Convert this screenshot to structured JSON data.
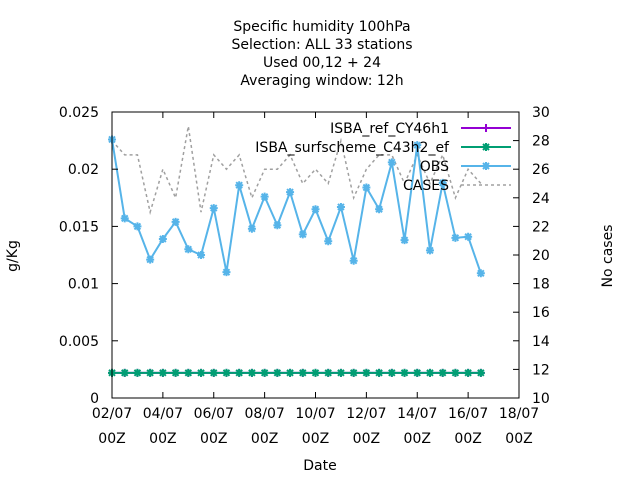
{
  "chart_data": {
    "type": "line",
    "title_lines": [
      "Specific humidity 100hPa",
      "Selection: ALL      33 stations",
      "Used  00,12  + 24",
      "Averaging window: 12h"
    ],
    "xlabel": "Date",
    "ylabel": "g/Kg",
    "y2label": "No cases",
    "x_ticks": [
      {
        "day": 2,
        "line1": "02/07",
        "line2": "00Z"
      },
      {
        "day": 4,
        "line1": "04/07",
        "line2": "00Z"
      },
      {
        "day": 6,
        "line1": "06/07",
        "line2": "00Z"
      },
      {
        "day": 8,
        "line1": "08/07",
        "line2": "00Z"
      },
      {
        "day": 10,
        "line1": "10/07",
        "line2": "00Z"
      },
      {
        "day": 12,
        "line1": "12/07",
        "line2": "00Z"
      },
      {
        "day": 14,
        "line1": "14/07",
        "line2": "00Z"
      },
      {
        "day": 16,
        "line1": "16/07",
        "line2": "00Z"
      },
      {
        "day": 18,
        "line1": "18/07",
        "line2": "00Z"
      }
    ],
    "xlim": [
      2,
      18
    ],
    "ylim": [
      0,
      0.025
    ],
    "y_ticks": [
      "0",
      "0.005",
      "0.01",
      "0.015",
      "0.02",
      "0.025"
    ],
    "y2lim": [
      10,
      30
    ],
    "y2_ticks": [
      "10",
      "12",
      "14",
      "16",
      "18",
      "20",
      "22",
      "24",
      "26",
      "28",
      "30"
    ],
    "legend_position": "top-right",
    "x": [
      2,
      2.5,
      3,
      3.5,
      4,
      4.5,
      5,
      5.5,
      6,
      6.5,
      7,
      7.5,
      8,
      8.5,
      9,
      9.5,
      10,
      10.5,
      11,
      11.5,
      12,
      12.5,
      13,
      13.5,
      14,
      14.5,
      15,
      15.5,
      16,
      16.5
    ],
    "series": [
      {
        "name": "ISBA_ref_CY46h1",
        "color": "#9400d3",
        "axis": "y1",
        "marker": "plus",
        "values": [
          0.0022,
          0.0022,
          0.0022,
          0.0022,
          0.0022,
          0.0022,
          0.0022,
          0.0022,
          0.0022,
          0.0022,
          0.0022,
          0.0022,
          0.0022,
          0.0022,
          0.0022,
          0.0022,
          0.0022,
          0.0022,
          0.0022,
          0.0022,
          0.0022,
          0.0022,
          0.0022,
          0.0022,
          0.0022,
          0.0022,
          0.0022,
          0.0022,
          0.0022,
          0.0022
        ]
      },
      {
        "name": "ISBA_surfscheme_C43h2_ef",
        "color": "#009e73",
        "axis": "y1",
        "marker": "star",
        "values": [
          0.0022,
          0.0022,
          0.0022,
          0.0022,
          0.0022,
          0.0022,
          0.0022,
          0.0022,
          0.0022,
          0.0022,
          0.0022,
          0.0022,
          0.0022,
          0.0022,
          0.0022,
          0.0022,
          0.0022,
          0.0022,
          0.0022,
          0.0022,
          0.0022,
          0.0022,
          0.0022,
          0.0022,
          0.0022,
          0.0022,
          0.0022,
          0.0022,
          0.0022,
          0.0022
        ]
      },
      {
        "name": "OBS",
        "color": "#56b4e9",
        "axis": "y1",
        "marker": "star",
        "values": [
          0.0226,
          0.0157,
          0.015,
          0.0121,
          0.0139,
          0.0154,
          0.013,
          0.0125,
          0.0166,
          0.011,
          0.0186,
          0.0148,
          0.0176,
          0.0151,
          0.018,
          0.0143,
          0.0165,
          0.0137,
          0.0167,
          0.012,
          0.0184,
          0.0165,
          0.0206,
          0.0138,
          0.0221,
          0.0129,
          0.0188,
          0.014,
          0.0141,
          0.0109
        ]
      },
      {
        "name": "CASES",
        "color": "#a0a0a0",
        "axis": "y2",
        "marker": "none",
        "values": [
          28,
          27,
          27,
          23,
          26,
          24,
          29,
          23,
          27,
          26,
          27,
          24,
          26,
          26,
          27,
          25,
          26,
          25,
          28,
          24,
          26,
          27,
          27,
          25,
          27,
          25,
          27,
          24,
          26,
          25
        ]
      }
    ]
  }
}
